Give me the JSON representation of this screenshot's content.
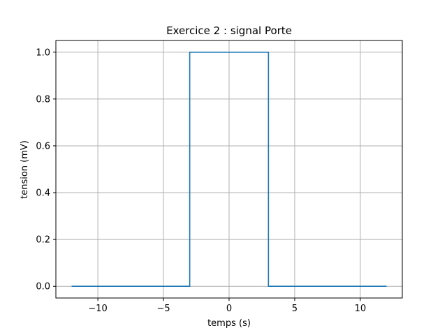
{
  "chart_data": {
    "type": "line",
    "title": "Exercice 2 : signal Porte",
    "xlabel": "temps (s)",
    "ylabel": "tension (mV)",
    "xlim": [
      -13.2,
      13.2
    ],
    "ylim": [
      -0.05,
      1.05
    ],
    "xticks": [
      -10,
      -5,
      0,
      5,
      10
    ],
    "xtick_labels": [
      "−10",
      "−5",
      "0",
      "5",
      "10"
    ],
    "yticks": [
      0.0,
      0.2,
      0.4,
      0.6,
      0.8,
      1.0
    ],
    "ytick_labels": [
      "0.0",
      "0.2",
      "0.4",
      "0.6",
      "0.8",
      "1.0"
    ],
    "grid": true,
    "series": [
      {
        "color": "#1f77b4",
        "x": [
          -12,
          -3,
          -3,
          3,
          3,
          12
        ],
        "y": [
          0,
          0,
          1,
          1,
          0,
          0
        ]
      }
    ]
  },
  "colors": {
    "series": "#1f77b4",
    "grid": "#b0b0b0",
    "axes": "#000000",
    "background": "#ffffff"
  }
}
